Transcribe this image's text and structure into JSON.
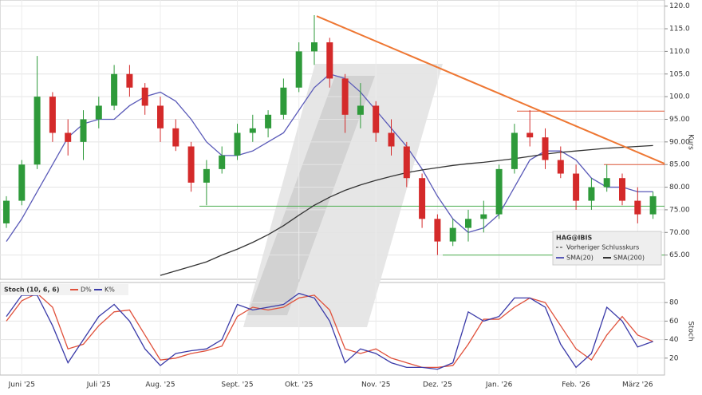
{
  "chart_data": [
    {
      "type": "candlestick",
      "instrument": "HAG@IBIS",
      "prev_close_label": "Vorheriger Schlusskurs",
      "ylabel": "Kurs",
      "open": [
        72,
        77,
        85,
        100,
        92,
        90,
        95,
        98,
        105,
        102,
        98,
        93,
        89,
        81,
        84,
        87,
        92,
        93,
        96,
        102,
        110,
        112,
        104,
        96,
        98,
        92,
        89,
        82,
        73,
        68,
        71,
        73,
        74,
        84,
        92,
        91,
        86,
        83,
        77,
        80,
        82,
        77,
        74
      ],
      "high": [
        78,
        86,
        109,
        101,
        95,
        97,
        100,
        107,
        107,
        103,
        100,
        95,
        90,
        86,
        89,
        94,
        96,
        97,
        104,
        112,
        118,
        113,
        105,
        103,
        99,
        95,
        90,
        83,
        74,
        73,
        75,
        77,
        85,
        94,
        97,
        93,
        89,
        85,
        82,
        85,
        83,
        80,
        79
      ],
      "low": [
        71,
        76,
        84,
        90,
        87,
        86,
        93,
        97,
        100,
        96,
        90,
        88,
        79,
        76,
        83,
        86,
        90,
        91,
        95,
        101,
        107,
        102,
        92,
        93,
        90,
        87,
        80,
        71,
        65,
        67,
        68,
        70,
        73,
        83,
        89,
        84,
        82,
        75,
        75,
        79,
        76,
        72,
        73
      ],
      "close": [
        77,
        85,
        100,
        92,
        90,
        95,
        98,
        105,
        102,
        98,
        93,
        89,
        81,
        84,
        87,
        92,
        93,
        96,
        102,
        110,
        112,
        104,
        96,
        98,
        92,
        89,
        82,
        73,
        68,
        71,
        73,
        74,
        84,
        92,
        91,
        86,
        83,
        77,
        80,
        82,
        77,
        74,
        78
      ],
      "up_color": "#2e9a3a",
      "down_color": "#d42a2a",
      "series": [
        {
          "name": "SMA(20)",
          "color": "#5a5ab8",
          "values": [
            68,
            73,
            79,
            85,
            91,
            94,
            95,
            95,
            98,
            100,
            101,
            99,
            95,
            90,
            87,
            87,
            88,
            90,
            92,
            97,
            102,
            105,
            104,
            101,
            97,
            93,
            89,
            84,
            78,
            73,
            70,
            71,
            74,
            80,
            86,
            88,
            88,
            86,
            82,
            80,
            80,
            79,
            79
          ]
        },
        {
          "name": "SMA(200)",
          "color": "#333333",
          "values": [
            null,
            null,
            null,
            null,
            null,
            null,
            null,
            null,
            null,
            null,
            60.5,
            61.5,
            62.5,
            63.5,
            65,
            66.3,
            67.8,
            69.5,
            71.5,
            73.8,
            76,
            77.8,
            79.3,
            80.5,
            81.5,
            82.4,
            83.2,
            83.8,
            84.3,
            84.8,
            85.2,
            85.5,
            85.9,
            86.3,
            86.8,
            87.3,
            87.7,
            88,
            88.3,
            88.6,
            88.8,
            89,
            89.2
          ]
        }
      ],
      "levels": [
        {
          "value": 75.8,
          "color": "#4caf50"
        },
        {
          "value": 65,
          "color": "#4caf50"
        },
        {
          "value": 96.8,
          "color": "#e05a3a"
        },
        {
          "value": 85,
          "color": "#e05a3a"
        }
      ],
      "trendline": {
        "start": 117.8,
        "end": 85.2,
        "color": "#ee7733"
      },
      "ylim": [
        60,
        121
      ],
      "yticks": [
        {
          "value": 65,
          "label": "65.00"
        },
        {
          "value": 70,
          "label": "70.00"
        },
        {
          "value": 75,
          "label": "75.00"
        },
        {
          "value": 80,
          "label": "80.00"
        },
        {
          "value": 85,
          "label": "85.00"
        },
        {
          "value": 90,
          "label": "90.00"
        },
        {
          "value": 95,
          "label": "95.00"
        },
        {
          "value": 100,
          "label": "100.0"
        },
        {
          "value": 105,
          "label": "105.0"
        },
        {
          "value": 110,
          "label": "110.0"
        },
        {
          "value": 115,
          "label": "115.0"
        },
        {
          "value": 120,
          "label": "120.0"
        }
      ],
      "grid": true
    },
    {
      "type": "line",
      "title": "Stoch (10, 6, 6)",
      "ylabel": "Stoch",
      "categories": [
        null,
        "Juni '25",
        null,
        null,
        null,
        null,
        "Juli '25",
        null,
        null,
        null,
        "Aug. '25",
        null,
        null,
        null,
        null,
        "Sept. '25",
        null,
        null,
        null,
        "Okt. '25",
        null,
        null,
        null,
        null,
        "Nov. '25",
        null,
        null,
        null,
        "Dez. '25",
        null,
        null,
        null,
        "Jan. '26",
        null,
        null,
        null,
        null,
        "Feb. '26",
        null,
        null,
        null,
        "März '26",
        null
      ],
      "series": [
        {
          "name": "D%",
          "color": "#e0503a",
          "values": [
            60,
            82,
            90,
            75,
            30,
            35,
            55,
            70,
            72,
            45,
            18,
            20,
            25,
            28,
            33,
            65,
            75,
            72,
            75,
            85,
            88,
            72,
            30,
            25,
            30,
            20,
            15,
            10,
            10,
            12,
            35,
            62,
            62,
            75,
            85,
            80,
            55,
            30,
            18,
            45,
            65,
            45,
            38
          ]
        },
        {
          "name": "K%",
          "color": "#3a3aa8",
          "values": [
            65,
            88,
            88,
            55,
            15,
            40,
            65,
            78,
            60,
            30,
            12,
            25,
            28,
            30,
            40,
            78,
            72,
            75,
            78,
            90,
            85,
            60,
            15,
            30,
            25,
            15,
            10,
            10,
            8,
            15,
            70,
            60,
            65,
            85,
            85,
            75,
            35,
            10,
            25,
            75,
            60,
            32,
            38
          ]
        }
      ],
      "ylim": [
        0,
        100
      ],
      "yticks": [
        20,
        40,
        60,
        80
      ],
      "grid": true
    }
  ]
}
